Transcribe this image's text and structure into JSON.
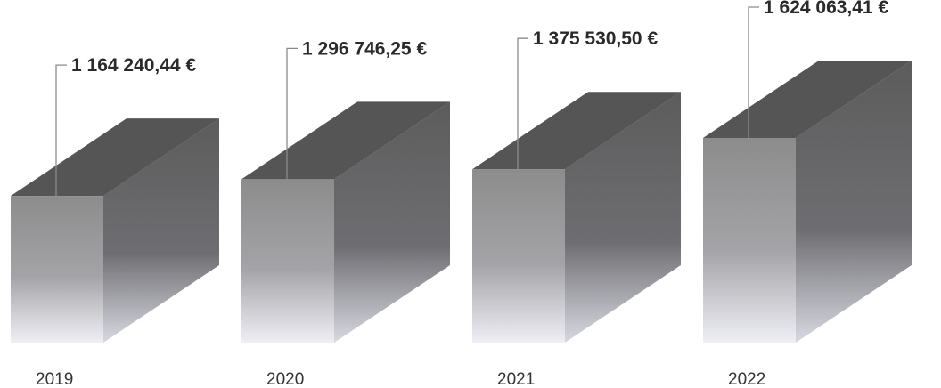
{
  "chart_data": {
    "type": "bar",
    "style": "3d-box",
    "categories": [
      "2019",
      "2020",
      "2021",
      "2022"
    ],
    "values": [
      1164240.44,
      1296746.25,
      1375530.5,
      1624063.41
    ],
    "data_labels": [
      "1 164 240,44 €",
      "1 296 746,25 €",
      "1 375 530,50 €",
      "1 624 063,41 €"
    ],
    "title": "",
    "xlabel": "",
    "ylabel": "",
    "ylim": [
      0,
      1624063.41
    ],
    "grid": false,
    "legend": "none",
    "colors": {
      "front_top": "#8c8c8c",
      "front_bottom": "#eeeef5",
      "side_top": "#5c5c5c",
      "side_bottom": "#d8d8e2",
      "top_face": "#555555",
      "leader_line": "#8a8a8a"
    }
  }
}
